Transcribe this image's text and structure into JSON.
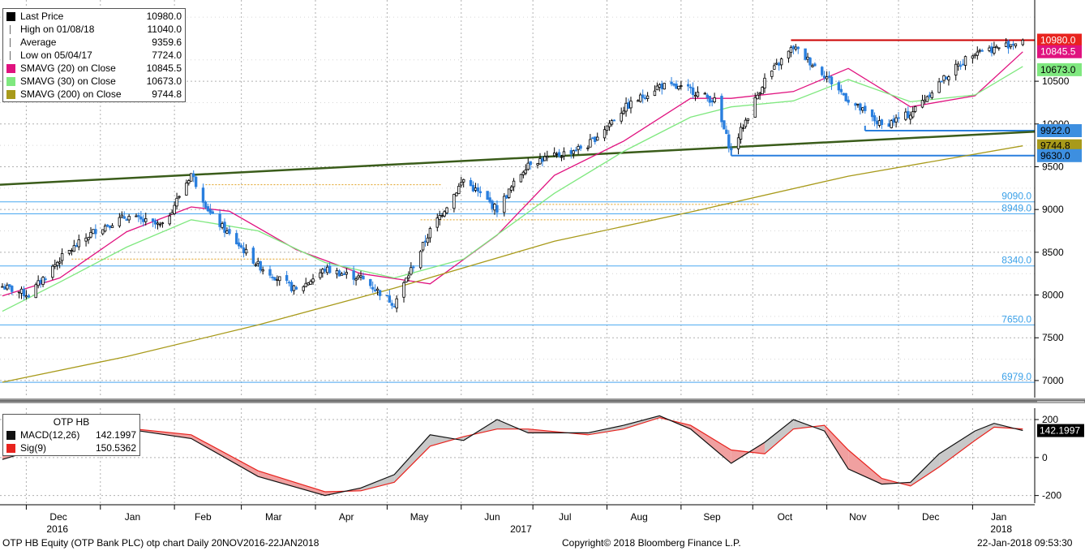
{
  "chart_data": [
    {
      "type": "candlestick",
      "title": "",
      "period": "Daily",
      "ylim": [
        6800,
        11450
      ],
      "y_ticks": [
        7000,
        7500,
        8000,
        8500,
        9000,
        9500,
        10000,
        10500
      ],
      "grid": true,
      "legend": [
        {
          "label": "Last Price",
          "value": "10980.0",
          "color": "#000000",
          "icon": "square"
        },
        {
          "label": "High on 01/08/18",
          "value": "11040.0",
          "color": "#666666",
          "icon": "high-marker-icon"
        },
        {
          "label": "Average",
          "value": "9359.6",
          "color": "#666666",
          "icon": "average-marker-icon"
        },
        {
          "label": "Low on 05/04/17",
          "value": "7724.0",
          "color": "#666666",
          "icon": "low-marker-icon"
        },
        {
          "label": "SMAVG (20) on Close",
          "value": "10845.5",
          "color": "#e0127f",
          "icon": "square"
        },
        {
          "label": "SMAVG (30) on Close",
          "value": "10673.0",
          "color": "#7fe87f",
          "icon": "square"
        },
        {
          "label": "SMAVG (200) on Close",
          "value": "9744.8",
          "color": "#a89a1a",
          "icon": "square"
        }
      ],
      "price_tags": [
        {
          "value": "10980.0",
          "y": 10980,
          "bg": "#e8231e",
          "fg": "#ffffff"
        },
        {
          "value": "10845.5",
          "y": 10845.5,
          "bg": "#e0127f",
          "fg": "#ffffff"
        },
        {
          "value": "10673.0",
          "y": 10673,
          "bg": "#7fe87f",
          "fg": "#000000"
        },
        {
          "value": "9922.0",
          "y": 9922,
          "bg": "#3d8fe0",
          "fg": "#000000"
        },
        {
          "value": "9744.8",
          "y": 9744.8,
          "bg": "#a89a1a",
          "fg": "#000000"
        },
        {
          "value": "9630.0",
          "y": 9630,
          "bg": "#3d8fe0",
          "fg": "#000000"
        }
      ],
      "horizontal_levels": [
        {
          "value": "9090.0",
          "y": 9090
        },
        {
          "value": "8949.0",
          "y": 8949
        },
        {
          "value": "8340.0",
          "y": 8340
        },
        {
          "value": "7650.0",
          "y": 7650
        },
        {
          "value": "6979.0",
          "y": 6979
        }
      ],
      "x_month_labels": [
        "Dec",
        "Jan",
        "Feb",
        "Mar",
        "Apr",
        "May",
        "Jun",
        "Jul",
        "Aug",
        "Sep",
        "Oct",
        "Nov",
        "Dec",
        "Jan"
      ],
      "x_year_labels": [
        "2016",
        "2017",
        "2018"
      ],
      "series": [
        {
          "name": "Last Price",
          "x": [
            "2016-11-21",
            "2016-12-02",
            "2016-12-15",
            "2016-12-30",
            "2017-01-12",
            "2017-01-27",
            "2017-02-08",
            "2017-02-16",
            "2017-02-24",
            "2017-03-08",
            "2017-03-24",
            "2017-04-05",
            "2017-04-20",
            "2017-05-04",
            "2017-05-19",
            "2017-06-02",
            "2017-06-16",
            "2017-06-29",
            "2017-07-10",
            "2017-07-24",
            "2017-08-08",
            "2017-08-23",
            "2017-09-05",
            "2017-09-15",
            "2017-09-22",
            "2017-10-06",
            "2017-10-18",
            "2017-10-31",
            "2017-11-10",
            "2017-11-24",
            "2017-12-06",
            "2017-12-18",
            "2018-01-02",
            "2018-01-10",
            "2018-01-22"
          ],
          "values": [
            8100,
            8000,
            8420,
            8760,
            8920,
            8800,
            9420,
            8950,
            8700,
            8350,
            8050,
            8300,
            8200,
            7900,
            8750,
            9350,
            9000,
            9550,
            9620,
            9750,
            10180,
            10450,
            10400,
            10270,
            9680,
            10520,
            10900,
            10580,
            10280,
            9980,
            10120,
            10480,
            10860,
            10880,
            10980
          ]
        },
        {
          "name": "SMAVG (20) on Close",
          "x": [
            "2016-11-21",
            "2016-12-15",
            "2017-01-12",
            "2017-02-08",
            "2017-02-24",
            "2017-03-24",
            "2017-04-20",
            "2017-05-19",
            "2017-06-16",
            "2017-07-10",
            "2017-08-08",
            "2017-09-05",
            "2017-09-22",
            "2017-10-18",
            "2017-11-10",
            "2017-12-06",
            "2018-01-02",
            "2018-01-22"
          ],
          "values": [
            7990,
            8200,
            8740,
            9030,
            8980,
            8530,
            8250,
            8130,
            8700,
            9400,
            9800,
            10300,
            10300,
            10380,
            10650,
            10200,
            10330,
            10845
          ]
        },
        {
          "name": "SMAVG (30) on Close",
          "x": [
            "2016-11-21",
            "2016-12-15",
            "2017-01-12",
            "2017-02-08",
            "2017-03-08",
            "2017-04-05",
            "2017-05-04",
            "2017-06-02",
            "2017-07-10",
            "2017-08-08",
            "2017-09-05",
            "2017-09-22",
            "2017-10-18",
            "2017-11-10",
            "2017-12-06",
            "2018-01-02",
            "2018-01-22"
          ],
          "values": [
            7810,
            8150,
            8560,
            8880,
            8750,
            8380,
            8200,
            8420,
            9190,
            9680,
            10080,
            10200,
            10270,
            10520,
            10260,
            10340,
            10673
          ]
        },
        {
          "name": "SMAVG (200) on Close",
          "x": [
            "2016-11-21",
            "2017-01-12",
            "2017-03-08",
            "2017-05-04",
            "2017-07-10",
            "2017-09-05",
            "2017-11-10",
            "2018-01-22"
          ],
          "values": [
            6980,
            7280,
            7650,
            8080,
            8630,
            8970,
            9390,
            9744.8
          ]
        }
      ]
    },
    {
      "type": "line",
      "title": "OTP HB",
      "ylim": [
        -240,
        260
      ],
      "y_ticks": [
        -200,
        0,
        200
      ],
      "grid": true,
      "legend": [
        {
          "label": "MACD(12,26)",
          "value": "142.1997",
          "color": "#111111",
          "icon": "square"
        },
        {
          "label": "Sig(9)",
          "value": "150.5362",
          "color": "#e8231e",
          "icon": "square"
        }
      ],
      "price_tags": [
        {
          "value": "142.1997",
          "y": 142.1997,
          "bg": "#000000",
          "fg": "#ffffff"
        }
      ],
      "series": [
        {
          "name": "MACD(12,26)",
          "x": [
            "2016-11-21",
            "2016-12-15",
            "2017-01-12",
            "2017-02-08",
            "2017-03-08",
            "2017-04-05",
            "2017-04-20",
            "2017-05-04",
            "2017-05-19",
            "2017-06-02",
            "2017-06-16",
            "2017-06-29",
            "2017-07-24",
            "2017-08-08",
            "2017-08-23",
            "2017-09-05",
            "2017-09-22",
            "2017-10-06",
            "2017-10-18",
            "2017-10-31",
            "2017-11-10",
            "2017-11-24",
            "2017-12-06",
            "2017-12-18",
            "2018-01-02",
            "2018-01-10",
            "2018-01-22"
          ],
          "values": [
            -10,
            80,
            150,
            100,
            -100,
            -200,
            -160,
            -90,
            120,
            90,
            200,
            130,
            130,
            170,
            220,
            150,
            -30,
            80,
            200,
            140,
            -60,
            -140,
            -130,
            20,
            140,
            180,
            142.2
          ]
        },
        {
          "name": "Sig(9)",
          "x": [
            "2016-11-21",
            "2016-12-15",
            "2017-01-12",
            "2017-02-08",
            "2017-03-08",
            "2017-04-05",
            "2017-04-20",
            "2017-05-04",
            "2017-05-19",
            "2017-06-02",
            "2017-06-16",
            "2017-06-29",
            "2017-07-24",
            "2017-08-08",
            "2017-08-23",
            "2017-09-05",
            "2017-09-22",
            "2017-10-06",
            "2017-10-18",
            "2017-10-31",
            "2017-11-10",
            "2017-11-24",
            "2017-12-06",
            "2017-12-18",
            "2018-01-02",
            "2018-01-10",
            "2018-01-22"
          ],
          "values": [
            40,
            90,
            155,
            120,
            -70,
            -180,
            -175,
            -130,
            60,
            110,
            150,
            150,
            120,
            150,
            210,
            170,
            40,
            20,
            150,
            170,
            40,
            -110,
            -150,
            -50,
            90,
            160,
            150.5
          ]
        }
      ]
    }
  ],
  "footer": {
    "left": "OTP HB Equity (OTP Bank PLC) otp chart  Daily 20NOV2016-22JAN2018",
    "center": "Copyright© 2018 Bloomberg Finance L.P.",
    "right": "22-Jan-2018 09:53:30"
  },
  "colors": {
    "price_up": "#000000",
    "price_down": "#2a7fde",
    "resistance": "#cc0000",
    "trendline": "#3a5c1a",
    "level_line": "#4aa8f0",
    "level_text": "#3aa0e8",
    "grid": "#b0b0b0",
    "macd_fill_pos": "#c8c8c8",
    "macd_fill_neg": "#f0a0a0"
  }
}
